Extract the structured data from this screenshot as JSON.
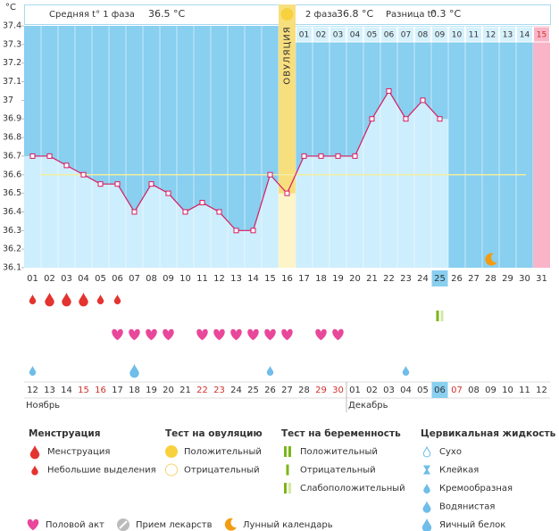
{
  "chart_data": {
    "type": "line",
    "y_unit": "°C",
    "phase1_label": "Средняя t° 1 фаза",
    "phase1_avg": "36.5 °C",
    "phase2_label": "2 фаза",
    "phase2_avg": "36.8 °C",
    "diff_label": "Разница t°",
    "diff": "0.3 °C",
    "categories": [
      "01",
      "02",
      "03",
      "04",
      "05",
      "06",
      "07",
      "08",
      "09",
      "10",
      "11",
      "12",
      "13",
      "14",
      "15",
      "16",
      "17",
      "18",
      "19",
      "20",
      "21",
      "22",
      "23",
      "24",
      "25",
      "26",
      "27",
      "28",
      "29",
      "30",
      "31"
    ],
    "values": [
      36.7,
      36.7,
      36.65,
      36.6,
      36.55,
      36.55,
      36.4,
      36.55,
      36.5,
      36.4,
      36.45,
      36.4,
      36.3,
      36.3,
      36.6,
      36.5,
      36.7,
      36.7,
      36.7,
      36.7,
      36.9,
      37.05,
      36.9,
      37.0,
      36.9,
      null,
      null,
      null,
      null,
      null,
      null
    ],
    "color": "#d81b60",
    "ylim": [
      36.1,
      37.4
    ],
    "yticks": [
      37.4,
      37.3,
      37.2,
      37.1,
      37,
      36.9,
      36.8,
      36.7,
      36.6,
      36.5,
      36.4,
      36.3,
      36.2,
      36.1
    ],
    "coverline": 36.6,
    "ovulation": {
      "category": "16",
      "label": "ОВУЛЯЦИЯ"
    },
    "phase2_days": [
      null,
      null,
      null,
      null,
      null,
      null,
      null,
      null,
      null,
      null,
      null,
      null,
      null,
      null,
      null,
      null,
      "01",
      "02",
      "03",
      "04",
      "05",
      "06",
      "07",
      "08",
      "09",
      "10",
      "11",
      "12",
      "13",
      "14",
      "15"
    ],
    "expected_period": "31",
    "highlight": "25",
    "lunar": [
      "28"
    ],
    "menstruation": [
      "small",
      "big",
      "big",
      "big",
      "small",
      "small",
      null,
      null,
      null,
      null,
      null,
      null,
      null,
      null,
      null,
      null,
      null,
      null,
      null,
      null,
      null,
      null,
      null,
      null,
      null,
      null,
      null,
      null,
      null,
      null,
      null
    ],
    "pregnancy_test": [
      null,
      null,
      null,
      null,
      null,
      null,
      null,
      null,
      null,
      null,
      null,
      null,
      null,
      null,
      null,
      null,
      null,
      null,
      null,
      null,
      null,
      null,
      null,
      null,
      "weak",
      null,
      null,
      null,
      null,
      null,
      null
    ],
    "intercourse": [
      null,
      null,
      null,
      null,
      null,
      true,
      true,
      true,
      true,
      null,
      true,
      true,
      true,
      true,
      true,
      true,
      null,
      true,
      true,
      null,
      null,
      null,
      null,
      null,
      null,
      null,
      null,
      null,
      null,
      null,
      null
    ],
    "cervical_fluid": [
      "small",
      null,
      null,
      null,
      null,
      null,
      "big",
      null,
      null,
      null,
      null,
      null,
      null,
      null,
      "small",
      null,
      null,
      null,
      null,
      null,
      null,
      null,
      "small",
      null,
      null,
      null,
      null,
      null,
      null,
      null,
      null
    ],
    "months": [
      {
        "label": "Ноябрь",
        "dates": [
          {
            "label": "12"
          },
          {
            "label": "13"
          },
          {
            "label": "14"
          },
          {
            "label": "15",
            "weekend": true
          },
          {
            "label": "16",
            "weekend": true
          },
          {
            "label": "17"
          },
          {
            "label": "18"
          },
          {
            "label": "19"
          },
          {
            "label": "20"
          },
          {
            "label": "21"
          },
          {
            "label": "22",
            "weekend": true
          },
          {
            "label": "23",
            "weekend": true
          },
          {
            "label": "24"
          },
          {
            "label": "25"
          },
          {
            "label": "26"
          },
          {
            "label": "27"
          },
          {
            "label": "28"
          },
          {
            "label": "29",
            "weekend": true
          },
          {
            "label": "30",
            "weekend": true
          }
        ]
      },
      {
        "label": "Декабрь",
        "dates": [
          {
            "label": "01"
          },
          {
            "label": "02"
          },
          {
            "label": "03"
          },
          {
            "label": "04"
          },
          {
            "label": "05"
          },
          {
            "label": "06",
            "weekend": true,
            "today": true
          },
          {
            "label": "07",
            "weekend": true
          },
          {
            "label": "08"
          },
          {
            "label": "09"
          },
          {
            "label": "10"
          },
          {
            "label": "11"
          },
          {
            "label": "12"
          }
        ]
      }
    ],
    "legend": [
      {
        "title": "Менструация",
        "items": [
          {
            "label": "Менструация",
            "icon": "drop-red"
          },
          {
            "label": "Небольшие выделения",
            "icon": "drop-red-small"
          }
        ]
      },
      {
        "title": "Тест на овуляцию",
        "items": [
          {
            "label": "Положительный",
            "icon": "circle-yellow"
          },
          {
            "label": "Отрицательный",
            "icon": "circle-empty"
          }
        ]
      },
      {
        "title": "Тест на беременность",
        "items": [
          {
            "label": "Положительный",
            "icon": "bars-2"
          },
          {
            "label": "Отрицательный",
            "icon": "bar-1"
          },
          {
            "label": "Слабоположительный",
            "icon": "bars-weak"
          }
        ]
      },
      {
        "title": "Цервикальная жидкость",
        "items": [
          {
            "label": "Сухо",
            "icon": "drop-outline"
          },
          {
            "label": "Клейкая",
            "icon": "hourglass"
          },
          {
            "label": "Кремообразная",
            "icon": "drop-blue-small"
          },
          {
            "label": "Водянистая",
            "icon": "drop-blue"
          },
          {
            "label": "Яичный белок",
            "icon": "drop-blue-big"
          }
        ]
      }
    ],
    "legend_extra": [
      {
        "label": "Половой акт",
        "icon": "heart"
      },
      {
        "label": "Прием лекарств",
        "icon": "pill"
      },
      {
        "label": "Лунный календарь",
        "icon": "moon"
      }
    ]
  }
}
